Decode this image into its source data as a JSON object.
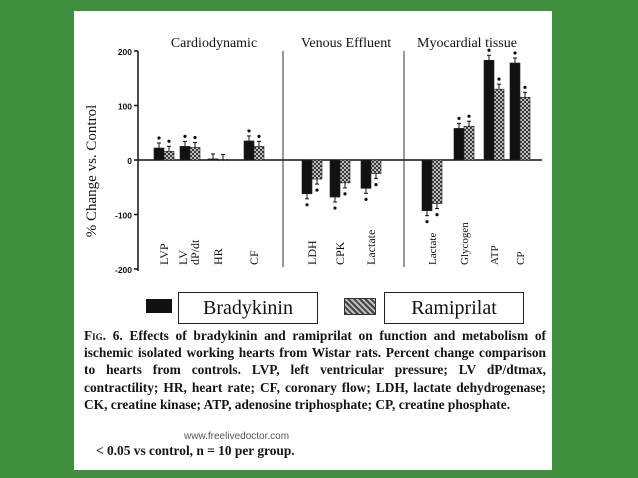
{
  "colors": {
    "background": "#3f8f3f",
    "panel": "#ffffff",
    "bradykinin_bar": "#111111",
    "ramiprilat_bar": "#6e6e6e"
  },
  "chart_data": {
    "type": "bar",
    "ylabel": "% Change vs. Control",
    "ylim": [
      -200,
      200
    ],
    "yticks": [
      "200",
      "100",
      "0",
      "-100",
      "-200"
    ],
    "ytick_values": [
      200,
      100,
      0,
      -100,
      -200
    ],
    "panels": [
      {
        "title": "Cardiodynamic",
        "categories": [
          "LVP",
          "LV dP/dt",
          "HR",
          "CF"
        ]
      },
      {
        "title": "Venous Effluent",
        "categories": [
          "LDH",
          "CPK",
          "Lactate"
        ]
      },
      {
        "title": "Myocardial tissue",
        "categories": [
          "Lactate",
          "Glycogen",
          "ATP",
          "CP"
        ]
      }
    ],
    "categories": [
      "LVP",
      "LV dP/dt",
      "HR",
      "CF",
      "LDH",
      "CPK",
      "Lactate",
      "Lactate",
      "Glycogen",
      "ATP",
      "CP"
    ],
    "series": [
      {
        "name": "Bradykinin",
        "values": [
          22,
          25,
          2,
          35,
          -62,
          -68,
          -52,
          -93,
          58,
          183,
          178
        ]
      },
      {
        "name": "Ramiprilat",
        "values": [
          16,
          23,
          1,
          25,
          -35,
          -42,
          -25,
          -80,
          62,
          130,
          115
        ]
      }
    ],
    "significant": [
      [
        true,
        true,
        false,
        true,
        true,
        true,
        true,
        true,
        true,
        true,
        true
      ],
      [
        true,
        true,
        false,
        true,
        true,
        true,
        true,
        true,
        true,
        true,
        true
      ]
    ]
  },
  "legend": {
    "bradykinin": "Bradykinin",
    "ramiprilat": "Ramiprilat"
  },
  "caption": {
    "fig_label": "Fig. 6.",
    "text": "Effects of bradykinin and ramiprilat on function and metabolism of ischemic isolated working hearts from Wistar rats. Percent change comparison to hearts from controls. LVP, left ventricular pressure; LV dP/dtmax, contractility; HR, heart rate; CF, coronary flow; LDH, lactate dehydrogenase; CK, creatine kinase; ATP, adenosine triphosphate; CP, creatine phosphate.",
    "footnote": "< 0.05 vs control, n = 10 per group."
  },
  "watermark": "www.freelivedoctor.com"
}
